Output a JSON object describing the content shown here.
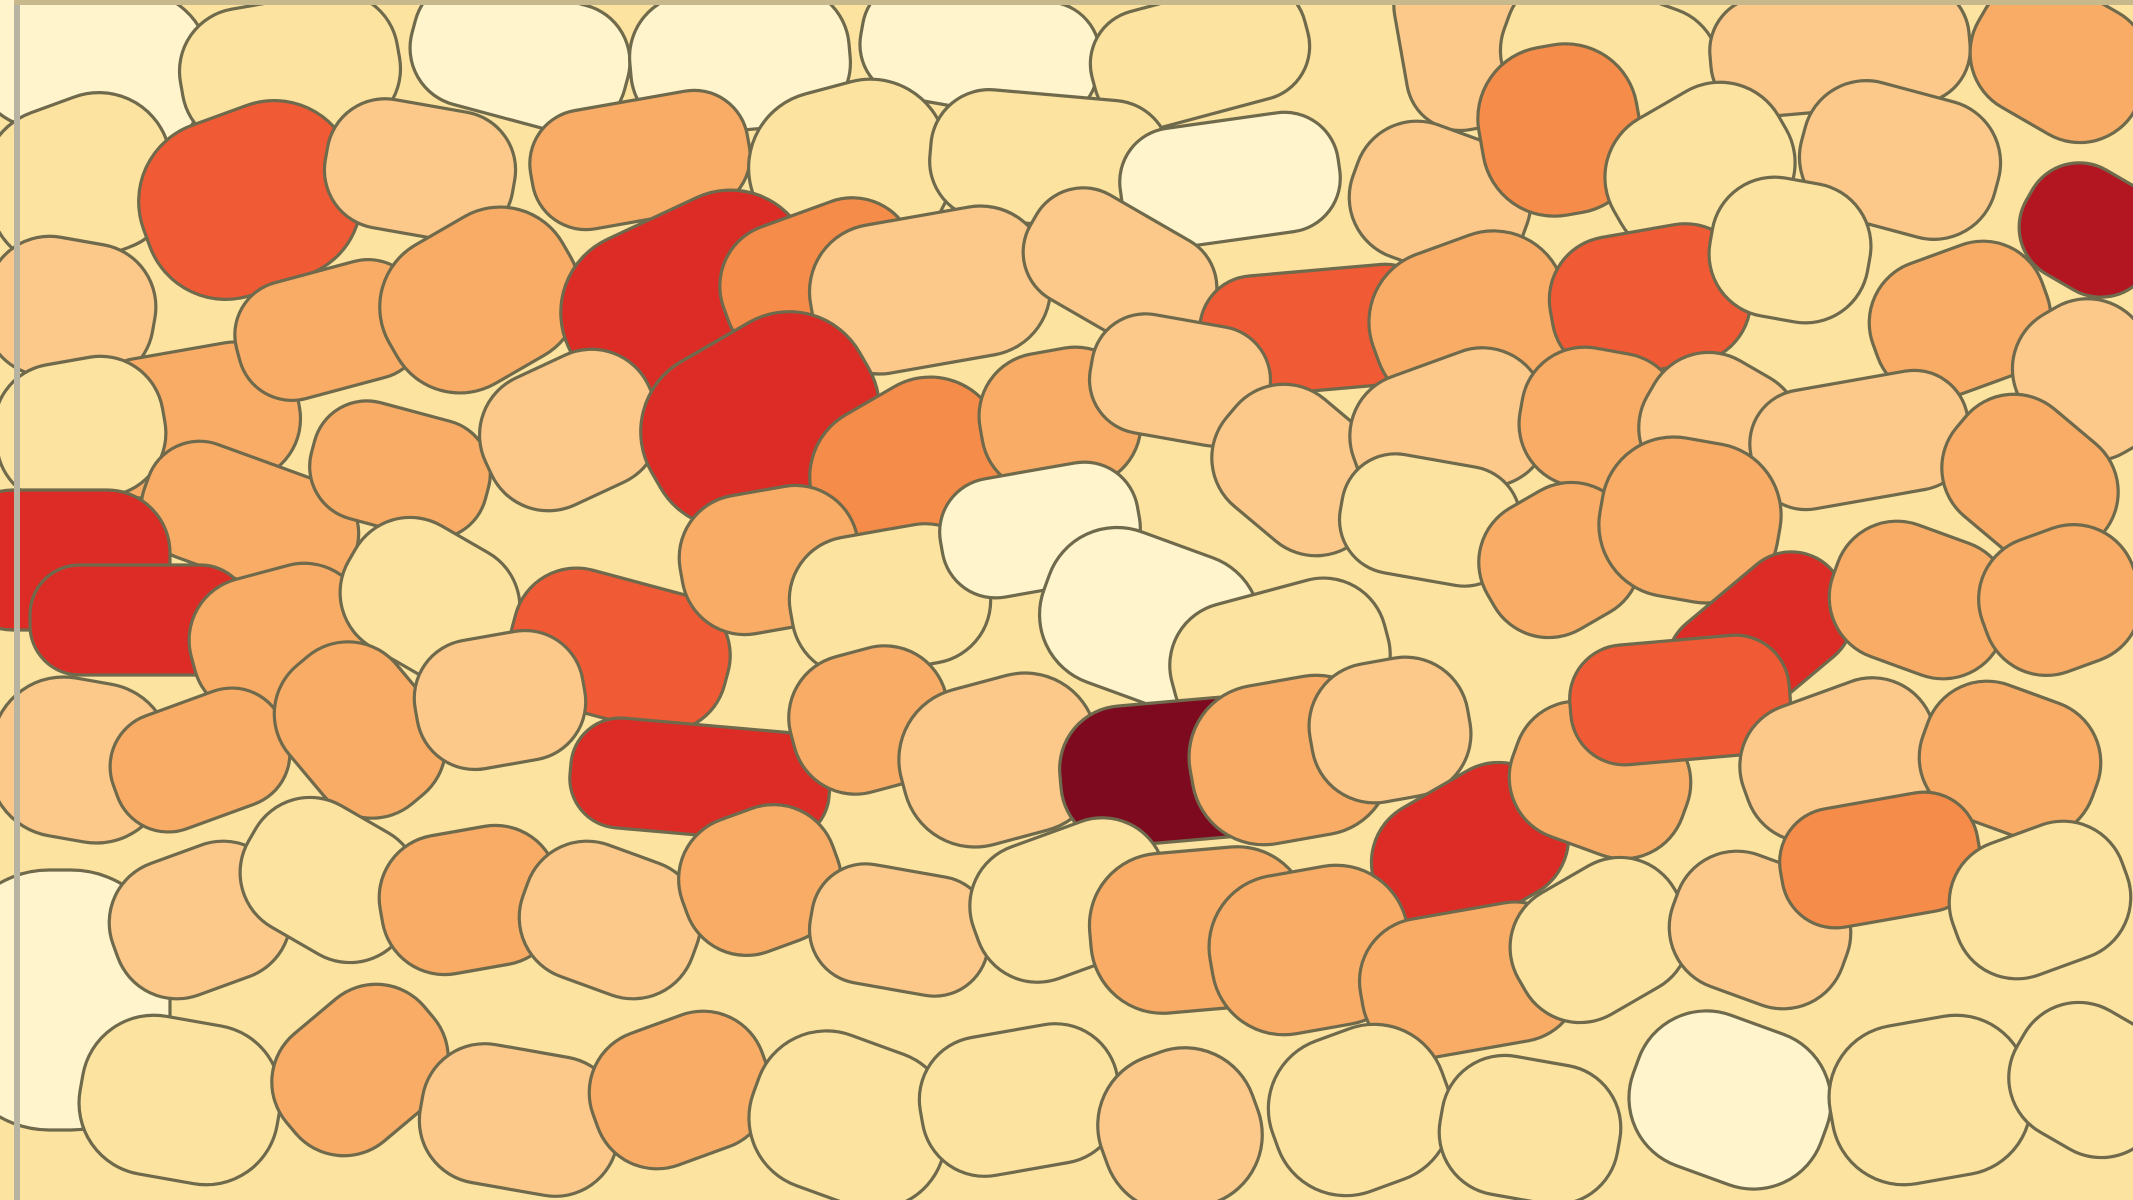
{
  "map": {
    "type": "choropleth",
    "palette": [
      "#fff4cc",
      "#fde3a0",
      "#fcc98a",
      "#f9ac66",
      "#f68c4a",
      "#f05a34",
      "#dd2b26",
      "#b31521",
      "#7d0a1e"
    ],
    "boundary_color": "#6f6a4c",
    "frame_color": "#b7b3a3",
    "legend": null,
    "title": ""
  }
}
